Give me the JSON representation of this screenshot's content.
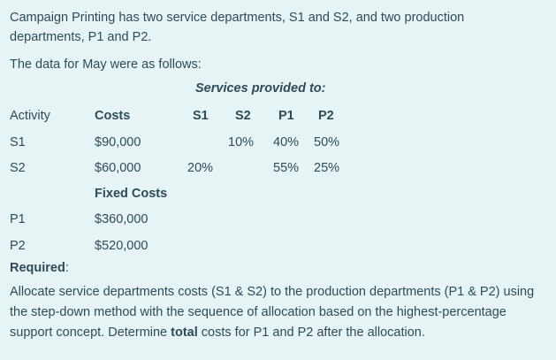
{
  "intro": {
    "line1": "Campaign Printing has two service departments, S1 and S2, and two production",
    "line2": "departments, P1 and P2.",
    "data_line": "The data for May were as follows:"
  },
  "table": {
    "services_heading": "Services provided to:",
    "headers": {
      "activity": "Activity",
      "costs": "Costs",
      "s1": "S1",
      "s2": "S2",
      "p1": "P1",
      "p2": "P2"
    },
    "rows": [
      {
        "activity": "S1",
        "costs": "$90,000",
        "s1": "",
        "s2": "10%",
        "p1": "40%",
        "p2": "50%"
      },
      {
        "activity": "S2",
        "costs": "$60,000",
        "s1": "20%",
        "s2": "",
        "p1": "55%",
        "p2": "25%"
      }
    ],
    "fixed_costs_label": "Fixed Costs",
    "fixed_rows": [
      {
        "activity": "P1",
        "costs": "$360,000"
      },
      {
        "activity": "P2",
        "costs": "$520,000"
      }
    ]
  },
  "required": {
    "label": "Required",
    "colon": ":",
    "text_before": "Allocate service departments costs (S1 & S2) to the production departments (P1 & P2) using the step-down method with the sequence of allocation based on the highest-percentage support concept. Determine ",
    "text_bold": "total",
    "text_after": " costs for P1 and P2 after the allocation."
  }
}
